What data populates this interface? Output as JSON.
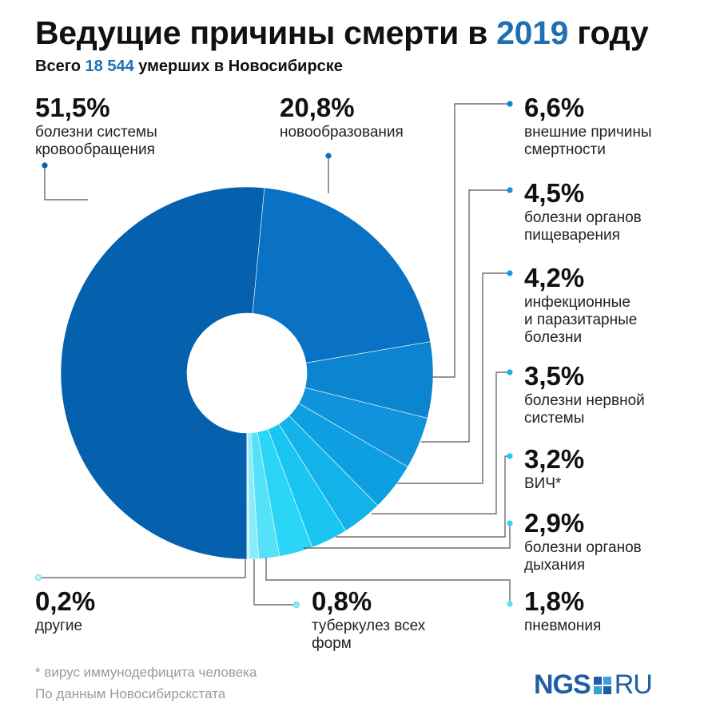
{
  "header": {
    "title_main": "Ведущие причины смерти в ",
    "title_year": "2019",
    "title_tail": " году",
    "subtitle_pre": "Всего ",
    "subtitle_num": "18 544",
    "subtitle_post": " умерших в Новосибирске"
  },
  "labels": [
    {
      "pct": "51,5%",
      "desc_lines": [
        "болезни системы",
        "кровообращения"
      ]
    },
    {
      "pct": "20,8%",
      "desc_lines": [
        "новообразования"
      ]
    },
    {
      "pct": "6,6%",
      "desc_lines": [
        "внешние причины",
        "смертности"
      ]
    },
    {
      "pct": "4,5%",
      "desc_lines": [
        "болезни органов",
        "пищеварения"
      ]
    },
    {
      "pct": "4,2%",
      "desc_lines": [
        "инфекционные",
        "и паразитарные",
        "болезни"
      ]
    },
    {
      "pct": "3,5%",
      "desc_lines": [
        "болезни нервной",
        "системы"
      ]
    },
    {
      "pct": "3,2%",
      "desc_lines": [
        "ВИЧ*"
      ]
    },
    {
      "pct": "2,9%",
      "desc_lines": [
        "болезни органов",
        "дыхания"
      ]
    },
    {
      "pct": "1,8%",
      "desc_lines": [
        "пневмония"
      ]
    },
    {
      "pct": "0,8%",
      "desc_lines": [
        "туберкулез всех",
        "форм"
      ]
    },
    {
      "pct": "0,2%",
      "desc_lines": [
        "другие"
      ]
    }
  ],
  "footnote": {
    "line1": "* вирус иммунодефицита человека",
    "line2": "По данным Новосибирскстата"
  },
  "logo": {
    "left": "NGS",
    "right": "RU"
  },
  "chart_data": {
    "type": "pie",
    "variant": "donut",
    "title": "Ведущие причины смерти в 2019 году",
    "subtitle": "Всего 18 544 умерших в Новосибирске",
    "unit": "%",
    "categories": [
      "болезни системы кровообращения",
      "новообразования",
      "внешние причины смертности",
      "болезни органов пищеварения",
      "инфекционные и паразитарные болезни",
      "болезни нервной системы",
      "ВИЧ*",
      "болезни органов дыхания",
      "пневмония",
      "туберкулез всех форм",
      "другие"
    ],
    "values": [
      51.5,
      20.8,
      6.6,
      4.5,
      4.2,
      3.5,
      3.2,
      2.9,
      1.8,
      0.8,
      0.2
    ],
    "colors": [
      "#0561ad",
      "#0a72c4",
      "#0d84cf",
      "#1093dc",
      "#0e9fe2",
      "#13b3ea",
      "#19c6f1",
      "#2ad5f6",
      "#55e1f8",
      "#8aebf9",
      "#bdf3fb"
    ]
  }
}
